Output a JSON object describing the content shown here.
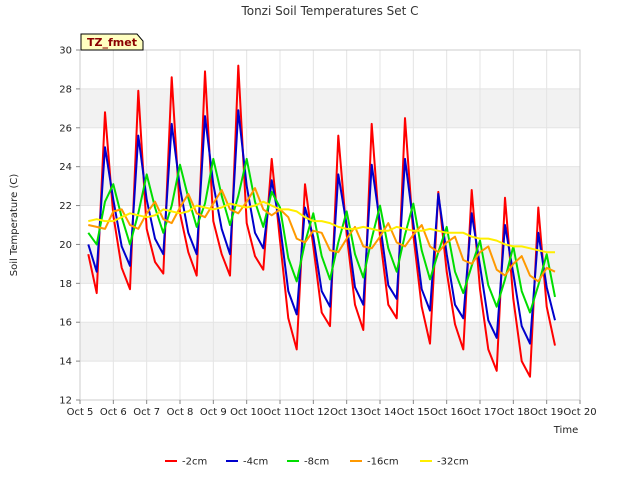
{
  "chart_data": {
    "type": "line",
    "title": "Tonzi Soil Temperatures Set C",
    "xlabel": "Time",
    "ylabel": "Soil Temperature (C)",
    "site_label": "TZ_fmet",
    "xlim": [
      5,
      20
    ],
    "ylim": [
      12,
      30
    ],
    "x_ticks": [
      5,
      6,
      7,
      8,
      9,
      10,
      11,
      12,
      13,
      14,
      15,
      16,
      17,
      18,
      19,
      20
    ],
    "x_tick_labels": [
      "Oct 5",
      "Oct 6",
      "Oct 7",
      "Oct 8",
      "Oct 9",
      "Oct 10",
      "Oct 11",
      "Oct 12",
      "Oct 13",
      "Oct 14",
      "Oct 15",
      "Oct 16",
      "Oct 17",
      "Oct 18",
      "Oct 19",
      "Oct 20"
    ],
    "y_ticks": [
      12,
      14,
      16,
      18,
      20,
      22,
      24,
      26,
      28,
      30
    ],
    "y_tick_labels": [
      "12",
      "14",
      "16",
      "18",
      "20",
      "22",
      "24",
      "26",
      "28",
      "30"
    ],
    "grid": true,
    "banded_background": true,
    "legend_position": "bottom-center",
    "series": [
      {
        "name": "-2cm",
        "color": "#ff0000",
        "x": [
          5.25,
          5.5,
          5.75,
          6.0,
          6.25,
          6.5,
          6.75,
          7.0,
          7.25,
          7.5,
          7.75,
          8.0,
          8.25,
          8.5,
          8.75,
          9.0,
          9.25,
          9.5,
          9.75,
          10.0,
          10.25,
          10.5,
          10.75,
          11.0,
          11.25,
          11.5,
          11.75,
          12.0,
          12.25,
          12.5,
          12.75,
          13.0,
          13.25,
          13.5,
          13.75,
          14.0,
          14.25,
          14.5,
          14.75,
          15.0,
          15.25,
          15.5,
          15.75,
          16.0,
          16.25,
          16.5,
          16.75,
          17.0,
          17.25,
          17.5,
          17.75,
          18.0,
          18.25,
          18.5,
          18.75,
          19.0,
          19.25
        ],
        "y": [
          19.5,
          17.5,
          26.8,
          21.5,
          18.8,
          17.7,
          27.9,
          20.8,
          19.1,
          18.5,
          28.6,
          21.6,
          19.6,
          18.4,
          28.9,
          21.2,
          19.5,
          18.4,
          29.2,
          21.1,
          19.4,
          18.7,
          24.4,
          20.2,
          16.2,
          14.6,
          23.1,
          19.9,
          16.5,
          15.8,
          25.6,
          20.5,
          16.9,
          15.6,
          26.2,
          20.4,
          16.9,
          16.2,
          26.5,
          20.5,
          16.8,
          14.9,
          22.7,
          18.6,
          15.9,
          14.6,
          22.8,
          17.7,
          14.6,
          13.5,
          22.4,
          17.2,
          14.0,
          13.2,
          21.9,
          16.8,
          14.8
        ]
      },
      {
        "name": "-4cm",
        "color": "#0000cc",
        "x": [
          5.25,
          5.5,
          5.75,
          6.0,
          6.25,
          6.5,
          6.75,
          7.0,
          7.25,
          7.5,
          7.75,
          8.0,
          8.25,
          8.5,
          8.75,
          9.0,
          9.25,
          9.5,
          9.75,
          10.0,
          10.25,
          10.5,
          10.75,
          11.0,
          11.25,
          11.5,
          11.75,
          12.0,
          12.25,
          12.5,
          12.75,
          13.0,
          13.25,
          13.5,
          13.75,
          14.0,
          14.25,
          14.5,
          14.75,
          15.0,
          15.25,
          15.5,
          15.75,
          16.0,
          16.25,
          16.5,
          16.75,
          17.0,
          17.25,
          17.5,
          17.75,
          18.0,
          18.25,
          18.5,
          18.75,
          19.0,
          19.25
        ],
        "y": [
          20.0,
          18.6,
          25.0,
          22.3,
          19.9,
          18.9,
          25.6,
          22.3,
          20.3,
          19.5,
          26.2,
          22.9,
          20.6,
          19.5,
          26.6,
          23.1,
          20.8,
          19.5,
          26.9,
          23.0,
          20.6,
          19.8,
          23.3,
          21.0,
          17.6,
          16.4,
          21.9,
          20.4,
          17.6,
          16.8,
          23.6,
          21.0,
          17.8,
          16.9,
          24.1,
          21.1,
          17.9,
          17.2,
          24.4,
          21.1,
          17.7,
          16.6,
          22.6,
          19.5,
          16.9,
          16.2,
          21.6,
          18.9,
          16.1,
          15.2,
          21.0,
          18.5,
          15.8,
          14.9,
          20.6,
          17.8,
          16.1
        ]
      },
      {
        "name": "-8cm",
        "color": "#00dd00",
        "x": [
          5.25,
          5.5,
          5.75,
          6.0,
          6.25,
          6.5,
          6.75,
          7.0,
          7.25,
          7.5,
          7.75,
          8.0,
          8.25,
          8.5,
          8.75,
          9.0,
          9.25,
          9.5,
          9.75,
          10.0,
          10.25,
          10.5,
          10.75,
          11.0,
          11.25,
          11.5,
          11.75,
          12.0,
          12.25,
          12.5,
          12.75,
          13.0,
          13.25,
          13.5,
          13.75,
          14.0,
          14.25,
          14.5,
          14.75,
          15.0,
          15.25,
          15.5,
          15.75,
          16.0,
          16.25,
          16.5,
          16.75,
          17.0,
          17.25,
          17.5,
          17.75,
          18.0,
          18.25,
          18.5,
          18.75,
          19.0,
          19.25
        ],
        "y": [
          20.6,
          20.0,
          22.2,
          23.1,
          21.4,
          20.0,
          21.6,
          23.6,
          21.9,
          20.6,
          22.0,
          24.1,
          22.4,
          20.9,
          22.1,
          24.4,
          22.5,
          21.0,
          22.5,
          24.4,
          22.2,
          20.9,
          22.7,
          21.9,
          19.3,
          18.1,
          20.1,
          21.6,
          19.4,
          18.2,
          20.1,
          21.7,
          19.5,
          18.3,
          20.3,
          22.0,
          19.8,
          18.6,
          20.5,
          22.1,
          19.7,
          18.2,
          19.6,
          20.9,
          18.6,
          17.5,
          18.9,
          20.2,
          17.9,
          16.8,
          18.2,
          19.9,
          17.6,
          16.5,
          17.9,
          19.5,
          17.3
        ]
      },
      {
        "name": "-16cm",
        "color": "#ff9900",
        "x": [
          5.25,
          5.5,
          5.75,
          6.0,
          6.25,
          6.5,
          6.75,
          7.0,
          7.25,
          7.5,
          7.75,
          8.0,
          8.25,
          8.5,
          8.75,
          9.0,
          9.25,
          9.5,
          9.75,
          10.0,
          10.25,
          10.5,
          10.75,
          11.0,
          11.25,
          11.5,
          11.75,
          12.0,
          12.25,
          12.5,
          12.75,
          13.0,
          13.25,
          13.5,
          13.75,
          14.0,
          14.25,
          14.5,
          14.75,
          15.0,
          15.25,
          15.5,
          15.75,
          16.0,
          16.25,
          16.5,
          16.75,
          17.0,
          17.25,
          17.5,
          17.75,
          18.0,
          18.25,
          18.5,
          18.75,
          19.0,
          19.25
        ],
        "y": [
          21.0,
          20.9,
          20.8,
          21.7,
          21.8,
          21.0,
          20.8,
          21.6,
          22.2,
          21.3,
          21.1,
          21.9,
          22.6,
          21.6,
          21.4,
          22.1,
          22.8,
          21.8,
          21.6,
          22.2,
          22.9,
          21.8,
          21.5,
          21.8,
          21.4,
          20.3,
          20.1,
          20.7,
          20.6,
          19.7,
          19.6,
          20.3,
          20.9,
          19.9,
          19.8,
          20.4,
          21.1,
          20.1,
          19.9,
          20.5,
          21.0,
          19.9,
          19.6,
          20.1,
          20.4,
          19.2,
          19.0,
          19.6,
          19.9,
          18.7,
          18.4,
          19.0,
          19.4,
          18.4,
          18.1,
          18.8,
          18.6
        ]
      },
      {
        "name": "-32cm",
        "color": "#ffee00",
        "x": [
          5.25,
          5.5,
          5.75,
          6.0,
          6.25,
          6.5,
          6.75,
          7.0,
          7.25,
          7.5,
          7.75,
          8.0,
          8.25,
          8.5,
          8.75,
          9.0,
          9.25,
          9.5,
          9.75,
          10.0,
          10.25,
          10.5,
          10.75,
          11.0,
          11.25,
          11.5,
          11.75,
          12.0,
          12.25,
          12.5,
          12.75,
          13.0,
          13.25,
          13.5,
          13.75,
          14.0,
          14.25,
          14.5,
          14.75,
          15.0,
          15.25,
          15.5,
          15.75,
          16.0,
          16.25,
          16.5,
          16.75,
          17.0,
          17.25,
          17.5,
          17.75,
          18.0,
          18.25,
          18.5,
          18.75,
          19.0,
          19.25
        ],
        "y": [
          21.2,
          21.3,
          21.2,
          21.2,
          21.4,
          21.6,
          21.5,
          21.4,
          21.5,
          21.8,
          21.7,
          21.6,
          21.7,
          22.0,
          21.9,
          21.8,
          21.9,
          22.1,
          22.0,
          21.9,
          22.0,
          22.2,
          22.0,
          21.8,
          21.8,
          21.7,
          21.4,
          21.2,
          21.2,
          21.1,
          20.9,
          20.8,
          20.8,
          20.9,
          20.8,
          20.7,
          20.7,
          20.9,
          20.8,
          20.7,
          20.7,
          20.8,
          20.7,
          20.6,
          20.6,
          20.6,
          20.4,
          20.3,
          20.3,
          20.2,
          20.0,
          19.9,
          19.9,
          19.8,
          19.7,
          19.6,
          19.6
        ]
      }
    ]
  }
}
